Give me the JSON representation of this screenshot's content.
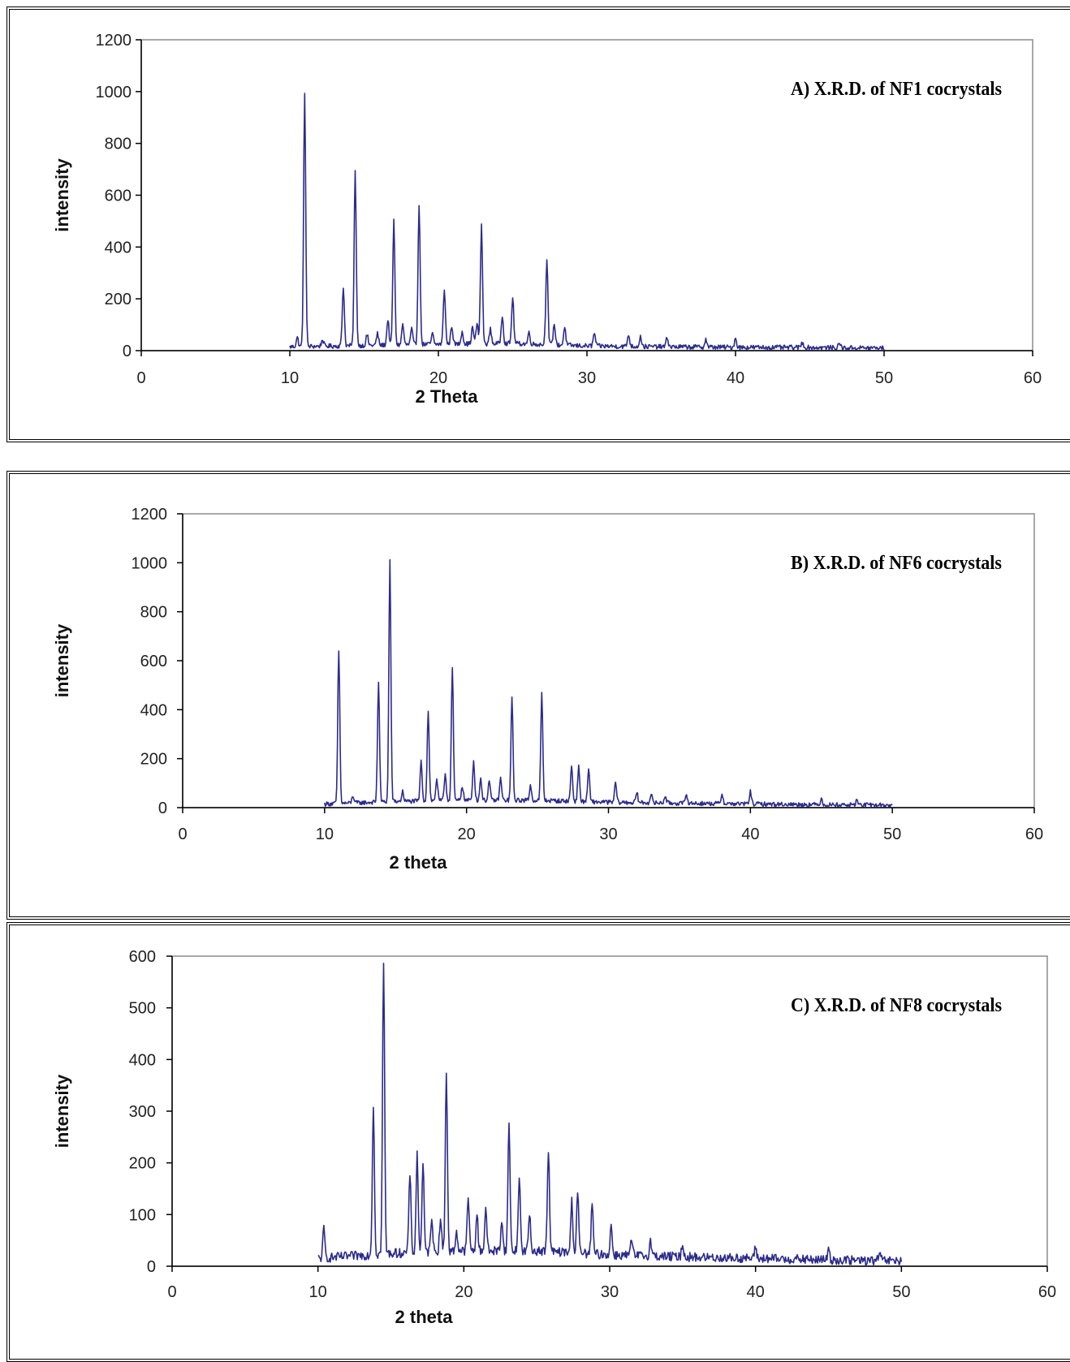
{
  "colors": {
    "line": "#2b2b8c",
    "axis": "#000000",
    "plot_border": "#8c8c8c"
  },
  "chart_data": [
    {
      "type": "line",
      "title": "A) X.R.D. of NF1 cocrystals",
      "xlabel": "2 Theta",
      "ylabel": "intensity",
      "xlim": [
        0,
        60
      ],
      "ylim": [
        0,
        1200
      ],
      "xticks": [
        "0",
        "10",
        "20",
        "30",
        "40",
        "50",
        "60"
      ],
      "yticks": [
        "0",
        "200",
        "400",
        "600",
        "800",
        "1000",
        "1200"
      ],
      "grid": false,
      "series": [
        {
          "x_range": [
            10,
            50
          ],
          "baseline": [
            [
              10,
              15
            ],
            [
              15,
              20
            ],
            [
              20,
              25
            ],
            [
              25,
              28
            ],
            [
              30,
              18
            ],
            [
              35,
              15
            ],
            [
              40,
              13
            ],
            [
              45,
              12
            ],
            [
              50,
              10
            ]
          ],
          "peaks": [
            [
              10.5,
              35
            ],
            [
              11,
              980
            ],
            [
              12.2,
              25
            ],
            [
              13.6,
              230
            ],
            [
              14.4,
              670
            ],
            [
              15.2,
              40
            ],
            [
              15.9,
              45
            ],
            [
              16.6,
              100
            ],
            [
              17,
              480
            ],
            [
              17.6,
              80
            ],
            [
              18.2,
              60
            ],
            [
              18.7,
              545
            ],
            [
              19.6,
              40
            ],
            [
              20.4,
              215
            ],
            [
              20.9,
              70
            ],
            [
              21.6,
              50
            ],
            [
              22.3,
              65
            ],
            [
              22.6,
              80
            ],
            [
              22.9,
              455
            ],
            [
              23.5,
              55
            ],
            [
              24.3,
              110
            ],
            [
              25,
              180
            ],
            [
              26.1,
              45
            ],
            [
              27.3,
              335
            ],
            [
              27.8,
              80
            ],
            [
              28.5,
              70
            ],
            [
              30.5,
              50
            ],
            [
              32.8,
              45
            ],
            [
              33.6,
              40
            ],
            [
              35.4,
              35
            ],
            [
              38,
              30
            ],
            [
              40,
              35
            ],
            [
              44.5,
              20
            ],
            [
              47,
              18
            ]
          ]
        }
      ]
    },
    {
      "type": "line",
      "title": "B) X.R.D. of NF6 cocrystals",
      "xlabel": "2 theta",
      "ylabel": "intensity",
      "xlim": [
        0,
        60
      ],
      "ylim": [
        0,
        1200
      ],
      "xticks": [
        "0",
        "10",
        "20",
        "30",
        "40",
        "50",
        "60"
      ],
      "yticks": [
        "0",
        "200",
        "400",
        "600",
        "800",
        "1000",
        "1200"
      ],
      "grid": false,
      "series": [
        {
          "x_range": [
            10,
            50
          ],
          "baseline": [
            [
              10,
              15
            ],
            [
              15,
              25
            ],
            [
              20,
              30
            ],
            [
              25,
              30
            ],
            [
              30,
              22
            ],
            [
              35,
              18
            ],
            [
              40,
              15
            ],
            [
              45,
              12
            ],
            [
              50,
              10
            ]
          ],
          "peaks": [
            [
              11,
              625
            ],
            [
              12,
              30
            ],
            [
              13.8,
              495
            ],
            [
              14.6,
              985
            ],
            [
              15.5,
              40
            ],
            [
              16.8,
              160
            ],
            [
              17.3,
              370
            ],
            [
              17.9,
              90
            ],
            [
              18.5,
              110
            ],
            [
              19,
              540
            ],
            [
              19.7,
              60
            ],
            [
              20.5,
              160
            ],
            [
              21,
              90
            ],
            [
              21.6,
              80
            ],
            [
              22.4,
              90
            ],
            [
              23.2,
              415
            ],
            [
              24.5,
              60
            ],
            [
              25.3,
              435
            ],
            [
              27.4,
              145
            ],
            [
              27.9,
              140
            ],
            [
              28.6,
              130
            ],
            [
              30.5,
              80
            ],
            [
              32,
              40
            ],
            [
              33,
              35
            ],
            [
              34,
              30
            ],
            [
              35.5,
              35
            ],
            [
              38,
              40
            ],
            [
              40,
              50
            ],
            [
              45,
              25
            ],
            [
              47.5,
              20
            ]
          ]
        }
      ]
    },
    {
      "type": "line",
      "title": "C) X.R.D. of NF8 cocrystals",
      "xlabel": "2 theta",
      "ylabel": "intensity",
      "xlim": [
        0,
        60
      ],
      "ylim": [
        0,
        600
      ],
      "xticks": [
        "0",
        "10",
        "20",
        "30",
        "40",
        "50",
        "60"
      ],
      "yticks": [
        "0",
        "100",
        "200",
        "300",
        "400",
        "500",
        "600"
      ],
      "grid": false,
      "series": [
        {
          "x_range": [
            10,
            50
          ],
          "baseline": [
            [
              10,
              15
            ],
            [
              15,
              25
            ],
            [
              20,
              30
            ],
            [
              25,
              30
            ],
            [
              30,
              22
            ],
            [
              35,
              18
            ],
            [
              40,
              15
            ],
            [
              45,
              12
            ],
            [
              50,
              10
            ]
          ],
          "peaks": [
            [
              10.4,
              55
            ],
            [
              13.8,
              288
            ],
            [
              14.5,
              565
            ],
            [
              16.3,
              155
            ],
            [
              16.8,
              190
            ],
            [
              17.2,
              175
            ],
            [
              17.8,
              70
            ],
            [
              18.4,
              65
            ],
            [
              18.8,
              350
            ],
            [
              19.5,
              40
            ],
            [
              20.3,
              105
            ],
            [
              20.9,
              70
            ],
            [
              21.5,
              85
            ],
            [
              22.6,
              60
            ],
            [
              23.1,
              250
            ],
            [
              23.8,
              145
            ],
            [
              24.5,
              70
            ],
            [
              25.8,
              200
            ],
            [
              27.4,
              100
            ],
            [
              27.8,
              120
            ],
            [
              28.8,
              95
            ],
            [
              30.1,
              55
            ],
            [
              31.5,
              30
            ],
            [
              32.8,
              30
            ],
            [
              35,
              25
            ],
            [
              40,
              20
            ],
            [
              45,
              20
            ],
            [
              48.5,
              15
            ]
          ]
        }
      ]
    }
  ]
}
